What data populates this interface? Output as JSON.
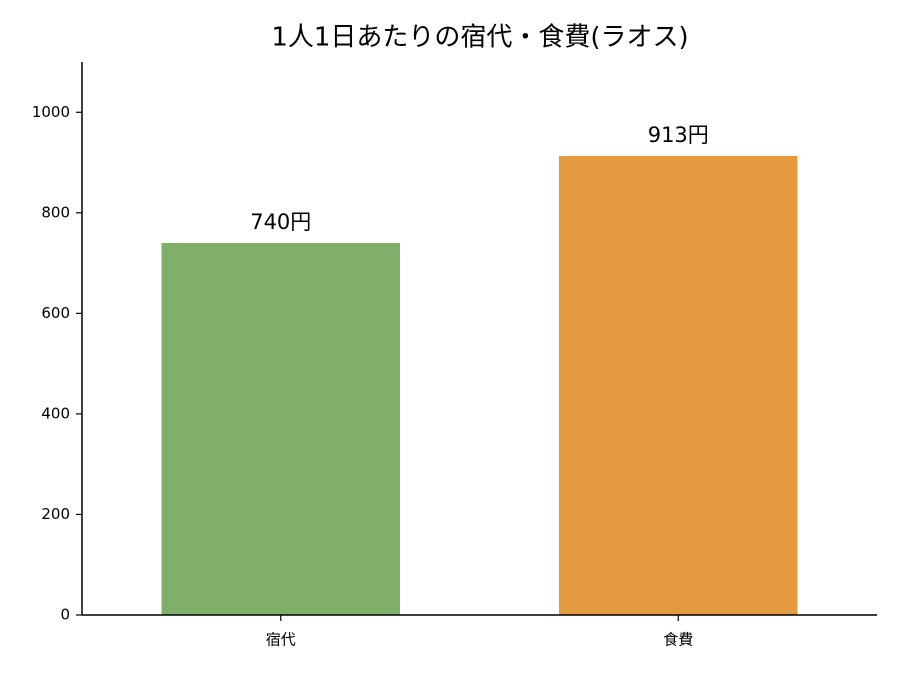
{
  "chart_data": {
    "type": "bar",
    "title": "1人1日あたりの宿代・食費(ラオス)",
    "categories": [
      "宿代",
      "食費"
    ],
    "values": [
      740,
      913
    ],
    "value_labels": [
      "740円",
      "913円"
    ],
    "colors": [
      "#7faf68",
      "#e59a3e"
    ],
    "ylim": [
      0,
      1100
    ],
    "yticks": [
      0,
      200,
      400,
      600,
      800,
      1000
    ],
    "grid": false
  }
}
